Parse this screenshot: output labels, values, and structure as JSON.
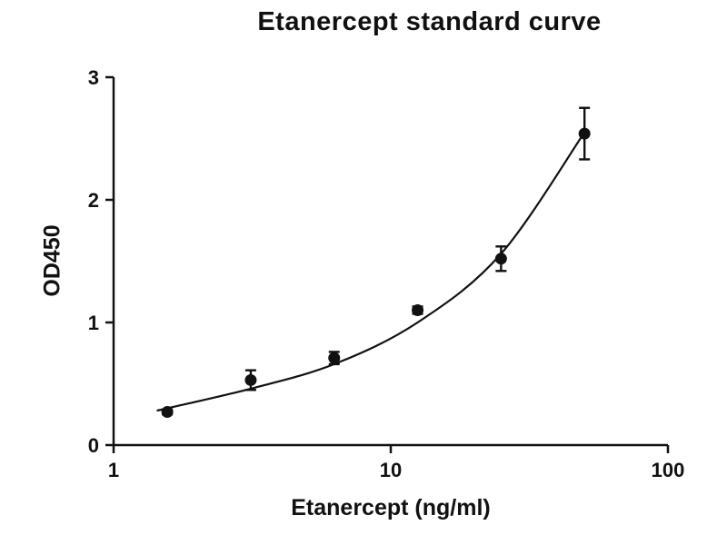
{
  "figure": {
    "title": "Etanercept standard curve",
    "x_label": "Etanercept (ng/ml)",
    "y_label": "OD450"
  },
  "chart_data": {
    "type": "scatter",
    "title": "Etanercept standard curve",
    "xlabel": "Etanercept (ng/ml)",
    "ylabel": "OD450",
    "x_scale": "log10",
    "xlim": [
      1,
      100
    ],
    "ylim": [
      0,
      3
    ],
    "x_ticks": [
      1,
      10,
      100
    ],
    "y_ticks": [
      0,
      1,
      2,
      3
    ],
    "grid": "off",
    "legend": "none",
    "marker_color": "#111111",
    "line_color": "#111111",
    "points": {
      "x": [
        1.5625,
        3.125,
        6.25,
        12.5,
        25,
        50
      ],
      "y": [
        0.27,
        0.53,
        0.71,
        1.1,
        1.52,
        2.54
      ],
      "y_err": [
        0.02,
        0.08,
        0.05,
        0.03,
        0.1,
        0.21
      ]
    },
    "fit_curve": [
      [
        1.45,
        0.285
      ],
      [
        1.5625,
        0.3
      ],
      [
        3.125,
        0.46
      ],
      [
        6.25,
        0.66
      ],
      [
        12.5,
        1.0
      ],
      [
        25,
        1.56
      ],
      [
        50,
        2.55
      ]
    ]
  }
}
